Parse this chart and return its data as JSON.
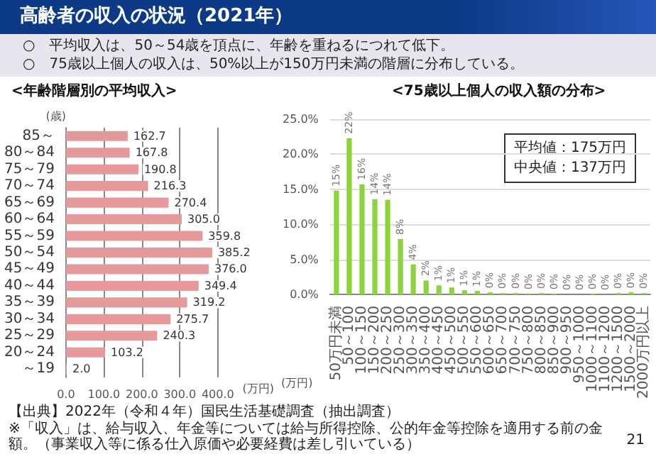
{
  "chart_data": [
    {
      "type": "bar",
      "orientation": "horizontal",
      "title": "<年齢階層別の平均収入>",
      "annotations": [
        "高齢者の収入の状況（2021年）",
        "○　平均収入は、50～54歳を頂点に、年齢を重ねるにつれて低下。",
        "○　75歳以上個人の収入は、50%以上が150万円未満の階層に分布している。",
        "【出典】2022年（令和４年）国民生活基礎調査（抽出調査）",
        "※「収入」は、給与収入、年金等については給与所得控除、公的年金等控除を適用する前の金額。（事業収入等に係る仕入原価や必要経費は差し引いている）",
        "21"
      ],
      "categories": [
        "85～",
        "80～84",
        "75～79",
        "70～74",
        "65～69",
        "60～64",
        "55～59",
        "50～54",
        "45～49",
        "40～44",
        "35～39",
        "30～34",
        "25～29",
        "20～24",
        "～19"
      ],
      "values": [
        162.7,
        167.8,
        190.8,
        216.3,
        270.4,
        305.0,
        359.8,
        385.2,
        376.0,
        349.4,
        319.2,
        275.7,
        240.3,
        103.2,
        2.0
      ],
      "value_labels": [
        "162.7",
        "167.8",
        "190.8",
        "216.3",
        "270.4",
        "305.0",
        "359.8",
        "385.2",
        "376.0",
        "349.4",
        "319.2",
        "275.7",
        "240.3",
        "103.2",
        "2.0"
      ],
      "color": "#e6999b",
      "xlim": [
        0,
        400
      ],
      "xticks": [
        {
          "value": 0,
          "label": "0.0"
        },
        {
          "value": 100,
          "label": "100.0"
        },
        {
          "value": 200,
          "label": "200.0"
        },
        {
          "value": 300,
          "label": "300.0"
        },
        {
          "value": 400,
          "label": "400.0"
        }
      ],
      "xlabel": "(万円)",
      "ylabel": "(歳)",
      "grid": "x"
    },
    {
      "type": "bar",
      "title": "<75歳以上個人の収入額の分布>",
      "annotations": [
        "平均値：175万円",
        "中央値：137万円"
      ],
      "categories": [
        "50万円未満",
        "50～100",
        "100～150",
        "150～200",
        "200～250",
        "250～300",
        "300～350",
        "350～400",
        "400～450",
        "450～500",
        "500～550",
        "550～600",
        "600～650",
        "650～700",
        "700～750",
        "750～800",
        "800～850",
        "850～900",
        "900～950",
        "950～1000",
        "1000～1100",
        "1100～1200",
        "1200～1500",
        "1500～2000",
        "2000万円以上"
      ],
      "values": [
        14.8,
        22.3,
        15.7,
        13.6,
        13.5,
        7.9,
        4.3,
        2.0,
        1.3,
        1.0,
        0.6,
        0.5,
        0.3,
        0.2,
        0.2,
        0.1,
        0.2,
        0.1,
        0.0,
        0.0,
        0.1,
        0.0,
        0.2,
        0.3,
        0.2
      ],
      "value_labels": [
        "15%",
        "22%",
        "16%",
        "14%",
        "14%",
        "8%",
        "4%",
        "2%",
        "1%",
        "1%",
        "1%",
        "1%",
        "0%",
        "0%",
        "0%",
        "0%",
        "0%",
        "0%",
        "0%",
        "0%",
        "0%",
        "0%",
        "0%",
        "0%",
        "0%"
      ],
      "color": "#8cd43c",
      "ylim": [
        0,
        25
      ],
      "yticks": [
        {
          "value": 0,
          "label": "0.0%"
        },
        {
          "value": 5,
          "label": "5.0%"
        },
        {
          "value": 10,
          "label": "10.0%"
        },
        {
          "value": 15,
          "label": "15.0%"
        },
        {
          "value": 20,
          "label": "20.0%"
        },
        {
          "value": 25,
          "label": "25.0%"
        }
      ],
      "xlabel": "(万円)",
      "grid": "y"
    }
  ]
}
